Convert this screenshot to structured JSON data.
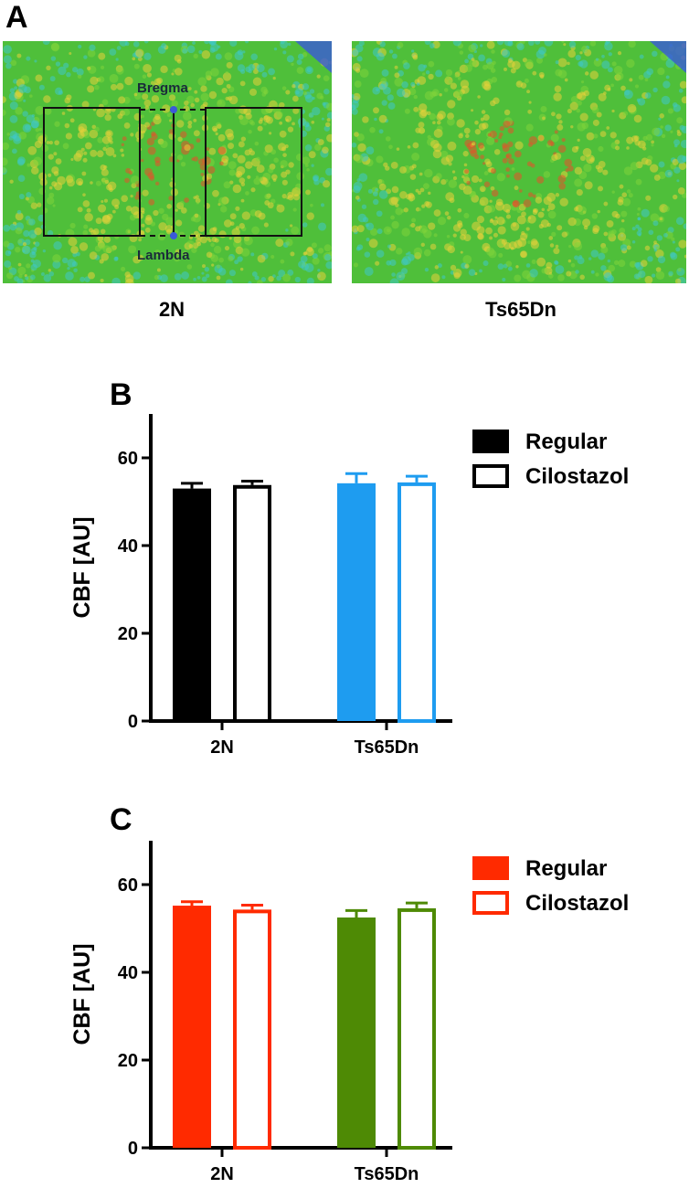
{
  "panel_a": {
    "letter": "A",
    "images": [
      {
        "label": "2N",
        "landmarks": {
          "top": "Bregma",
          "bottom": "Lambda"
        }
      },
      {
        "label": "Ts65Dn"
      }
    ],
    "colors": {
      "base": "#4fbf3a",
      "hot": "#e8502a",
      "warm": "#e8d23a",
      "cool": "#3fc8c8",
      "edge": "#3a5ad8"
    }
  },
  "chart_data": [
    {
      "type": "bar",
      "panel": "B",
      "title": "",
      "xlabel": "",
      "ylabel": "CBF [AU]",
      "ylim": [
        0,
        70
      ],
      "yticks": [
        0,
        20,
        40,
        60
      ],
      "categories": [
        "2N",
        "Ts65Dn"
      ],
      "series": [
        {
          "name": "Regular",
          "values": [
            53,
            54.2
          ],
          "errors": [
            1.2,
            2.2
          ],
          "style": "filled",
          "colors": [
            "#000000",
            "#1e9cf0"
          ]
        },
        {
          "name": "Cilostazol",
          "values": [
            53.8,
            54.4
          ],
          "errors": [
            0.9,
            1.4
          ],
          "style": "open",
          "colors": [
            "#000000",
            "#1e9cf0"
          ]
        }
      ],
      "legend": {
        "position": "top-right",
        "color": "#000000"
      }
    },
    {
      "type": "bar",
      "panel": "C",
      "title": "",
      "xlabel": "",
      "ylabel": "CBF [AU]",
      "ylim": [
        0,
        70
      ],
      "yticks": [
        0,
        20,
        40,
        60
      ],
      "categories": [
        "2N",
        "Ts65Dn"
      ],
      "series": [
        {
          "name": "Regular",
          "values": [
            55.2,
            52.5
          ],
          "errors": [
            0.9,
            1.6
          ],
          "style": "filled",
          "colors": [
            "#ff2a00",
            "#4e8a05"
          ]
        },
        {
          "name": "Cilostazol",
          "values": [
            54.3,
            54.6
          ],
          "errors": [
            1.0,
            1.2
          ],
          "style": "open",
          "colors": [
            "#ff2a00",
            "#4e8a05"
          ]
        }
      ],
      "legend": {
        "position": "top-right",
        "color": "#ff2a00"
      }
    }
  ]
}
